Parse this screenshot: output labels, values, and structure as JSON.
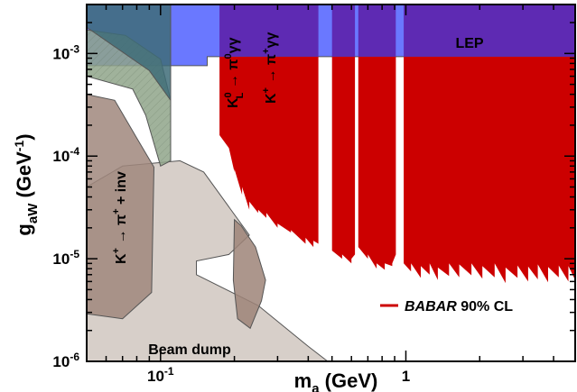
{
  "chart_data": {
    "type": "area",
    "xlabel": {
      "main": "m",
      "sub": "a",
      "unit": " (GeV)"
    },
    "ylabel": {
      "main": "g",
      "sub": "aW",
      "unit_pre": " (GeV",
      "unit_sup": "-1",
      "unit_post": ")"
    },
    "xscale": "log",
    "yscale": "log",
    "xlim": [
      0.05,
      4.9
    ],
    "ylim": [
      1e-06,
      0.003
    ],
    "x_ticks": [
      {
        "value": 0.1,
        "base": "10",
        "exp": "-1"
      },
      {
        "value": 1,
        "base": "1",
        "exp": ""
      }
    ],
    "y_ticks": [
      {
        "value": 1e-06,
        "base": "10",
        "exp": "-6"
      },
      {
        "value": 1e-05,
        "base": "10",
        "exp": "-5"
      },
      {
        "value": 0.0001,
        "base": "10",
        "exp": "-4"
      },
      {
        "value": 0.001,
        "base": "10",
        "exp": "-3"
      }
    ],
    "regions": [
      {
        "id": "lep",
        "label": "LEP",
        "color": "#6a78ff",
        "points": [
          [
            0.05,
            0.00076
          ],
          [
            0.155,
            0.00076
          ],
          [
            0.155,
            0.00093
          ],
          [
            4.9,
            0.00093
          ],
          [
            4.9,
            0.003
          ],
          [
            0.05,
            0.003
          ]
        ]
      },
      {
        "id": "beam-dump",
        "label": "Beam dump",
        "color": "#d0c7bf",
        "points": [
          [
            0.05,
            1e-06
          ],
          [
            0.05,
            5e-05
          ],
          [
            0.07,
            8e-05
          ],
          [
            0.12,
            9e-05
          ],
          [
            0.15,
            7e-05
          ],
          [
            0.19,
            3.2e-05
          ],
          [
            0.23,
            1.7e-05
          ],
          [
            0.19,
            1.1e-05
          ],
          [
            0.14,
            9.5e-06
          ],
          [
            0.14,
            7e-06
          ],
          [
            0.25,
            3.5e-06
          ],
          [
            0.4,
            1.4e-06
          ],
          [
            0.48,
            1e-06
          ]
        ]
      },
      {
        "id": "k-pi-inv",
        "label_parts": [
          "K",
          "+",
          " → π",
          "+",
          " + inv"
        ],
        "color": "#a0877c",
        "points": [
          [
            0.05,
            2.9e-06
          ],
          [
            0.07,
            2.6e-06
          ],
          [
            0.092,
            4.7e-06
          ],
          [
            0.094,
            7.8e-05
          ],
          [
            0.08,
            0.00015
          ],
          [
            0.065,
            0.00035
          ],
          [
            0.05,
            0.0004
          ]
        ]
      },
      {
        "id": "hatched",
        "color": "#8fa48a",
        "points": [
          [
            0.05,
            0.0017
          ],
          [
            0.072,
            0.0015
          ],
          [
            0.1,
            0.00088
          ],
          [
            0.11,
            0.00035
          ],
          [
            0.11,
            9e-05
          ],
          [
            0.1,
            8e-05
          ],
          [
            0.087,
            0.00025
          ],
          [
            0.077,
            0.00045
          ],
          [
            0.05,
            0.0006
          ]
        ]
      },
      {
        "id": "teal",
        "color": "#3e6c78",
        "points": [
          [
            0.05,
            0.003
          ],
          [
            0.11,
            0.003
          ],
          [
            0.11,
            0.00035
          ],
          [
            0.09,
            0.00068
          ],
          [
            0.05,
            0.0018
          ]
        ]
      },
      {
        "id": "kl-pi0-gg",
        "label_parts": [
          "K",
          "0",
          "L",
          " → π",
          "0",
          "γγ"
        ],
        "color": "#43c43a",
        "points": [
          [
            0.18,
            0.003
          ],
          [
            0.26,
            0.003
          ],
          [
            0.26,
            0.00055
          ],
          [
            0.23,
            0.00038
          ],
          [
            0.18,
            0.00038
          ]
        ]
      },
      {
        "id": "kp-pip-gg",
        "label_parts": [
          "K",
          "+",
          " → π",
          "+",
          "γγ"
        ],
        "color": "#3f8d35",
        "points": [
          [
            0.225,
            0.003
          ],
          [
            0.345,
            0.003
          ],
          [
            0.345,
            0.00037
          ],
          [
            0.3,
            0.00022
          ],
          [
            0.25,
            6.5e-05
          ],
          [
            0.228,
            8.5e-05
          ]
        ]
      },
      {
        "id": "middle-brown",
        "color": "#9d8478",
        "points": [
          [
            0.2,
            2.4e-05
          ],
          [
            0.213,
            2.1e-05
          ],
          [
            0.244,
            1.3e-05
          ],
          [
            0.268,
            6.2e-06
          ],
          [
            0.258,
            3.9e-06
          ],
          [
            0.232,
            2.1e-06
          ],
          [
            0.206,
            2.6e-06
          ],
          [
            0.198,
            6.2e-06
          ]
        ]
      },
      {
        "id": "babar",
        "label": "BABAR 90% CL",
        "legend_parts": [
          "BABAR",
          " 90% CL"
        ],
        "color": "#cc0000",
        "segments": [
          {
            "x": [
              0.174,
              0.19,
              0.2,
              0.2,
              0.215,
              0.215,
              0.23,
              0.23,
              0.25,
              0.25,
              0.27,
              0.27,
              0.3,
              0.3,
              0.34,
              0.34,
              0.39,
              0.39,
              0.42,
              0.42,
              0.44
            ],
            "y": [
              0.00016,
              0.00012,
              7e-05,
              7.5e-05,
              4.2e-05,
              5e-05,
              3e-05,
              3.6e-05,
              2.8e-05,
              3e-05,
              2.5e-05,
              2.8e-05,
              2e-05,
              2.2e-05,
              1.8e-05,
              1.9e-05,
              1.4e-05,
              1.6e-05,
              1.3e-05,
              1.5e-05,
              1.4e-05
            ]
          },
          {
            "x": [
              0.5,
              0.55,
              0.55,
              0.6,
              0.6,
              0.62
            ],
            "y": [
              1.2e-05,
              1e-05,
              1.1e-05,
              9e-06,
              1e-05,
              1.1e-05
            ]
          },
          {
            "x": [
              0.64,
              0.7,
              0.7,
              0.76,
              0.76,
              0.82,
              0.82,
              0.88,
              0.88,
              0.91
            ],
            "y": [
              1.3e-05,
              1e-05,
              1.1e-05,
              8e-06,
              9e-06,
              7.8e-06,
              9e-06,
              8.5e-06,
              9e-06,
              1.1e-05
            ]
          },
          {
            "x": [
              0.98,
              1.05,
              1.05,
              1.15,
              1.15,
              1.25,
              1.25,
              1.35,
              1.35,
              1.5,
              1.5,
              1.65,
              1.65,
              1.85,
              1.85,
              2.05,
              2.05,
              2.3,
              2.3,
              2.55,
              2.55,
              2.85,
              2.85,
              3.15,
              3.15,
              3.45,
              3.45,
              3.8,
              3.8,
              4.2,
              4.2,
              4.6,
              4.6,
              4.9
            ],
            "y": [
              9e-06,
              7.5e-06,
              9e-06,
              6.5e-06,
              8.5e-06,
              7e-06,
              9e-06,
              6.2e-06,
              8.2e-06,
              6.8e-06,
              9e-06,
              6.6e-06,
              8.8e-06,
              6.9e-06,
              9e-06,
              6.4e-06,
              8.5e-06,
              6.6e-06,
              9e-06,
              5.8e-06,
              8.2e-06,
              6.5e-06,
              8.6e-06,
              6e-06,
              8.4e-06,
              6.3e-06,
              8.8e-06,
              5.9e-06,
              8.3e-06,
              6.6e-06,
              8.6e-06,
              6e-06,
              8.5e-06,
              6.2e-06
            ]
          }
        ]
      }
    ]
  }
}
